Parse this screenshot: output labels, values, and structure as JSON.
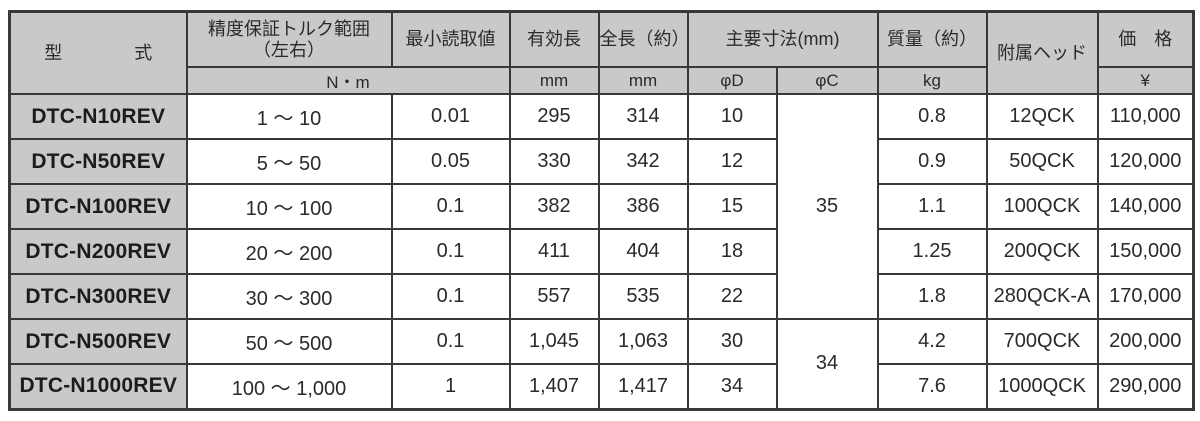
{
  "colors": {
    "header_bg": "#c9c9c9",
    "border": "#383838",
    "text": "#2a2a2a"
  },
  "table": {
    "header": {
      "model": "型　　　　式",
      "torque_range_line1": "精度保証トルク範囲",
      "torque_range_line2": "（左右）",
      "min_reading": "最小読取値",
      "effective_length": "有効長",
      "overall_length": "全長（約）",
      "main_dimensions": "主要寸法(mm)",
      "mass": "質量（約）",
      "head": "附属ヘッド",
      "price": "価　格",
      "unit_nm": "N・m",
      "unit_mm_effective": "mm",
      "unit_mm_overall": "mm",
      "phi_d": "φD",
      "phi_c": "φC",
      "unit_kg": "kg",
      "unit_yen": "¥"
    },
    "rows": [
      {
        "model": "DTC-N10REV",
        "range": "1 ～ 10",
        "min": "0.01",
        "eff": "295",
        "total": "314",
        "phiD": "10",
        "mass": "0.8",
        "head": "12QCK",
        "price": "110,000"
      },
      {
        "model": "DTC-N50REV",
        "range": "5 ～ 50",
        "min": "0.05",
        "eff": "330",
        "total": "342",
        "phiD": "12",
        "mass": "0.9",
        "head": "50QCK",
        "price": "120,000"
      },
      {
        "model": "DTC-N100REV",
        "range": "10 ～ 100",
        "min": "0.1",
        "eff": "382",
        "total": "386",
        "phiD": "15",
        "mass": "1.1",
        "head": "100QCK",
        "price": "140,000"
      },
      {
        "model": "DTC-N200REV",
        "range": "20 ～ 200",
        "min": "0.1",
        "eff": "411",
        "total": "404",
        "phiD": "18",
        "mass": "1.25",
        "head": "200QCK",
        "price": "150,000"
      },
      {
        "model": "DTC-N300REV",
        "range": "30 ～ 300",
        "min": "0.1",
        "eff": "557",
        "total": "535",
        "phiD": "22",
        "mass": "1.8",
        "head": "280QCK-A",
        "price": "170,000"
      },
      {
        "model": "DTC-N500REV",
        "range": "50 ～ 500",
        "min": "0.1",
        "eff": "1,045",
        "total": "1,063",
        "phiD": "30",
        "mass": "4.2",
        "head": "700QCK",
        "price": "200,000"
      },
      {
        "model": "DTC-N1000REV",
        "range": "100 ～ 1,000",
        "min": "1",
        "eff": "1,407",
        "total": "1,417",
        "phiD": "34",
        "mass": "7.6",
        "head": "1000QCK",
        "price": "290,000"
      }
    ],
    "phi_c_groups": [
      {
        "value": "35",
        "rowspan": 5
      },
      {
        "value": "34",
        "rowspan": 2
      }
    ]
  }
}
